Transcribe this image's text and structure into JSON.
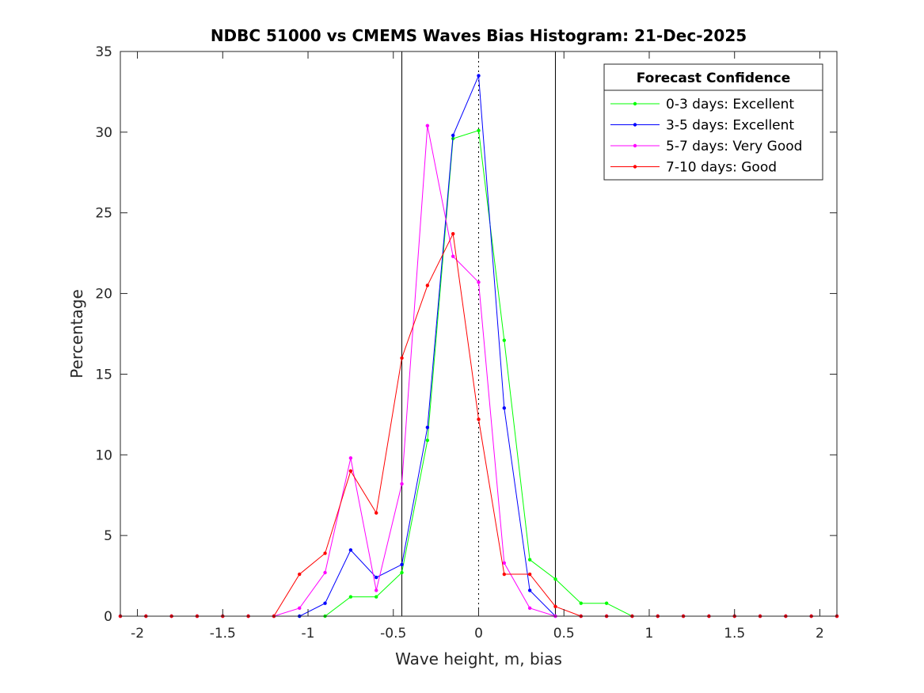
{
  "chart_data": {
    "type": "line",
    "title": "NDBC 51000 vs CMEMS Waves Bias Histogram: 21-Dec-2025",
    "xlabel": "Wave height, m, bias",
    "ylabel": "Percentage",
    "xlim": [
      -2.1,
      2.1
    ],
    "ylim": [
      0,
      35
    ],
    "xticks": [
      -2,
      -1.5,
      -1,
      -0.5,
      0,
      0.5,
      1,
      1.5,
      2
    ],
    "xtick_labels": [
      "-2",
      "-1.5",
      "-1",
      "-0.5",
      "0",
      "0.5",
      "1",
      "1.5",
      "2"
    ],
    "yticks": [
      0,
      5,
      10,
      15,
      20,
      25,
      30,
      35
    ],
    "ytick_labels": [
      "0",
      "5",
      "10",
      "15",
      "20",
      "25",
      "30",
      "35"
    ],
    "reference_lines": [
      -0.45,
      0.45
    ],
    "zero_line": 0,
    "legend": {
      "title": "Forecast Confidence",
      "location": "top-right"
    },
    "x": [
      -2.1,
      -1.95,
      -1.8,
      -1.65,
      -1.5,
      -1.35,
      -1.2,
      -1.05,
      -0.9,
      -0.75,
      -0.6,
      -0.45,
      -0.3,
      -0.15,
      0,
      0.15,
      0.3,
      0.45,
      0.6,
      0.75,
      0.9,
      1.05,
      1.2,
      1.35,
      1.5,
      1.65,
      1.8,
      1.95,
      2.1
    ],
    "series": [
      {
        "name": "0-3 days: Excellent",
        "color": "#00ff00",
        "values": [
          0,
          0,
          0,
          0,
          0,
          0,
          0,
          0,
          0,
          1.2,
          1.2,
          2.7,
          10.9,
          29.6,
          30.1,
          17.1,
          3.5,
          2.3,
          0.8,
          0.8,
          0,
          0,
          0,
          0,
          0,
          0,
          0,
          0,
          0
        ]
      },
      {
        "name": "3-5 days: Excellent",
        "color": "#0000ff",
        "values": [
          0,
          0,
          0,
          0,
          0,
          0,
          0,
          0,
          0.8,
          4.1,
          2.4,
          3.2,
          11.7,
          29.8,
          33.5,
          12.9,
          1.6,
          0,
          0,
          0,
          0,
          0,
          0,
          0,
          0,
          0,
          0,
          0,
          0
        ]
      },
      {
        "name": "5-7 days: Very Good",
        "color": "#ff00ff",
        "values": [
          0,
          0,
          0,
          0,
          0,
          0,
          0,
          0.5,
          2.7,
          9.8,
          1.6,
          8.2,
          30.4,
          22.3,
          20.7,
          3.3,
          0.5,
          0,
          0,
          0,
          0,
          0,
          0,
          0,
          0,
          0,
          0,
          0,
          0
        ]
      },
      {
        "name": "7-10 days: Good",
        "color": "#ff0000",
        "values": [
          0,
          0,
          0,
          0,
          0,
          0,
          0,
          2.6,
          3.9,
          9.0,
          6.4,
          16.0,
          20.5,
          23.7,
          12.2,
          2.6,
          2.6,
          0.6,
          0,
          0,
          0,
          0,
          0,
          0,
          0,
          0,
          0,
          0,
          0
        ]
      }
    ]
  }
}
